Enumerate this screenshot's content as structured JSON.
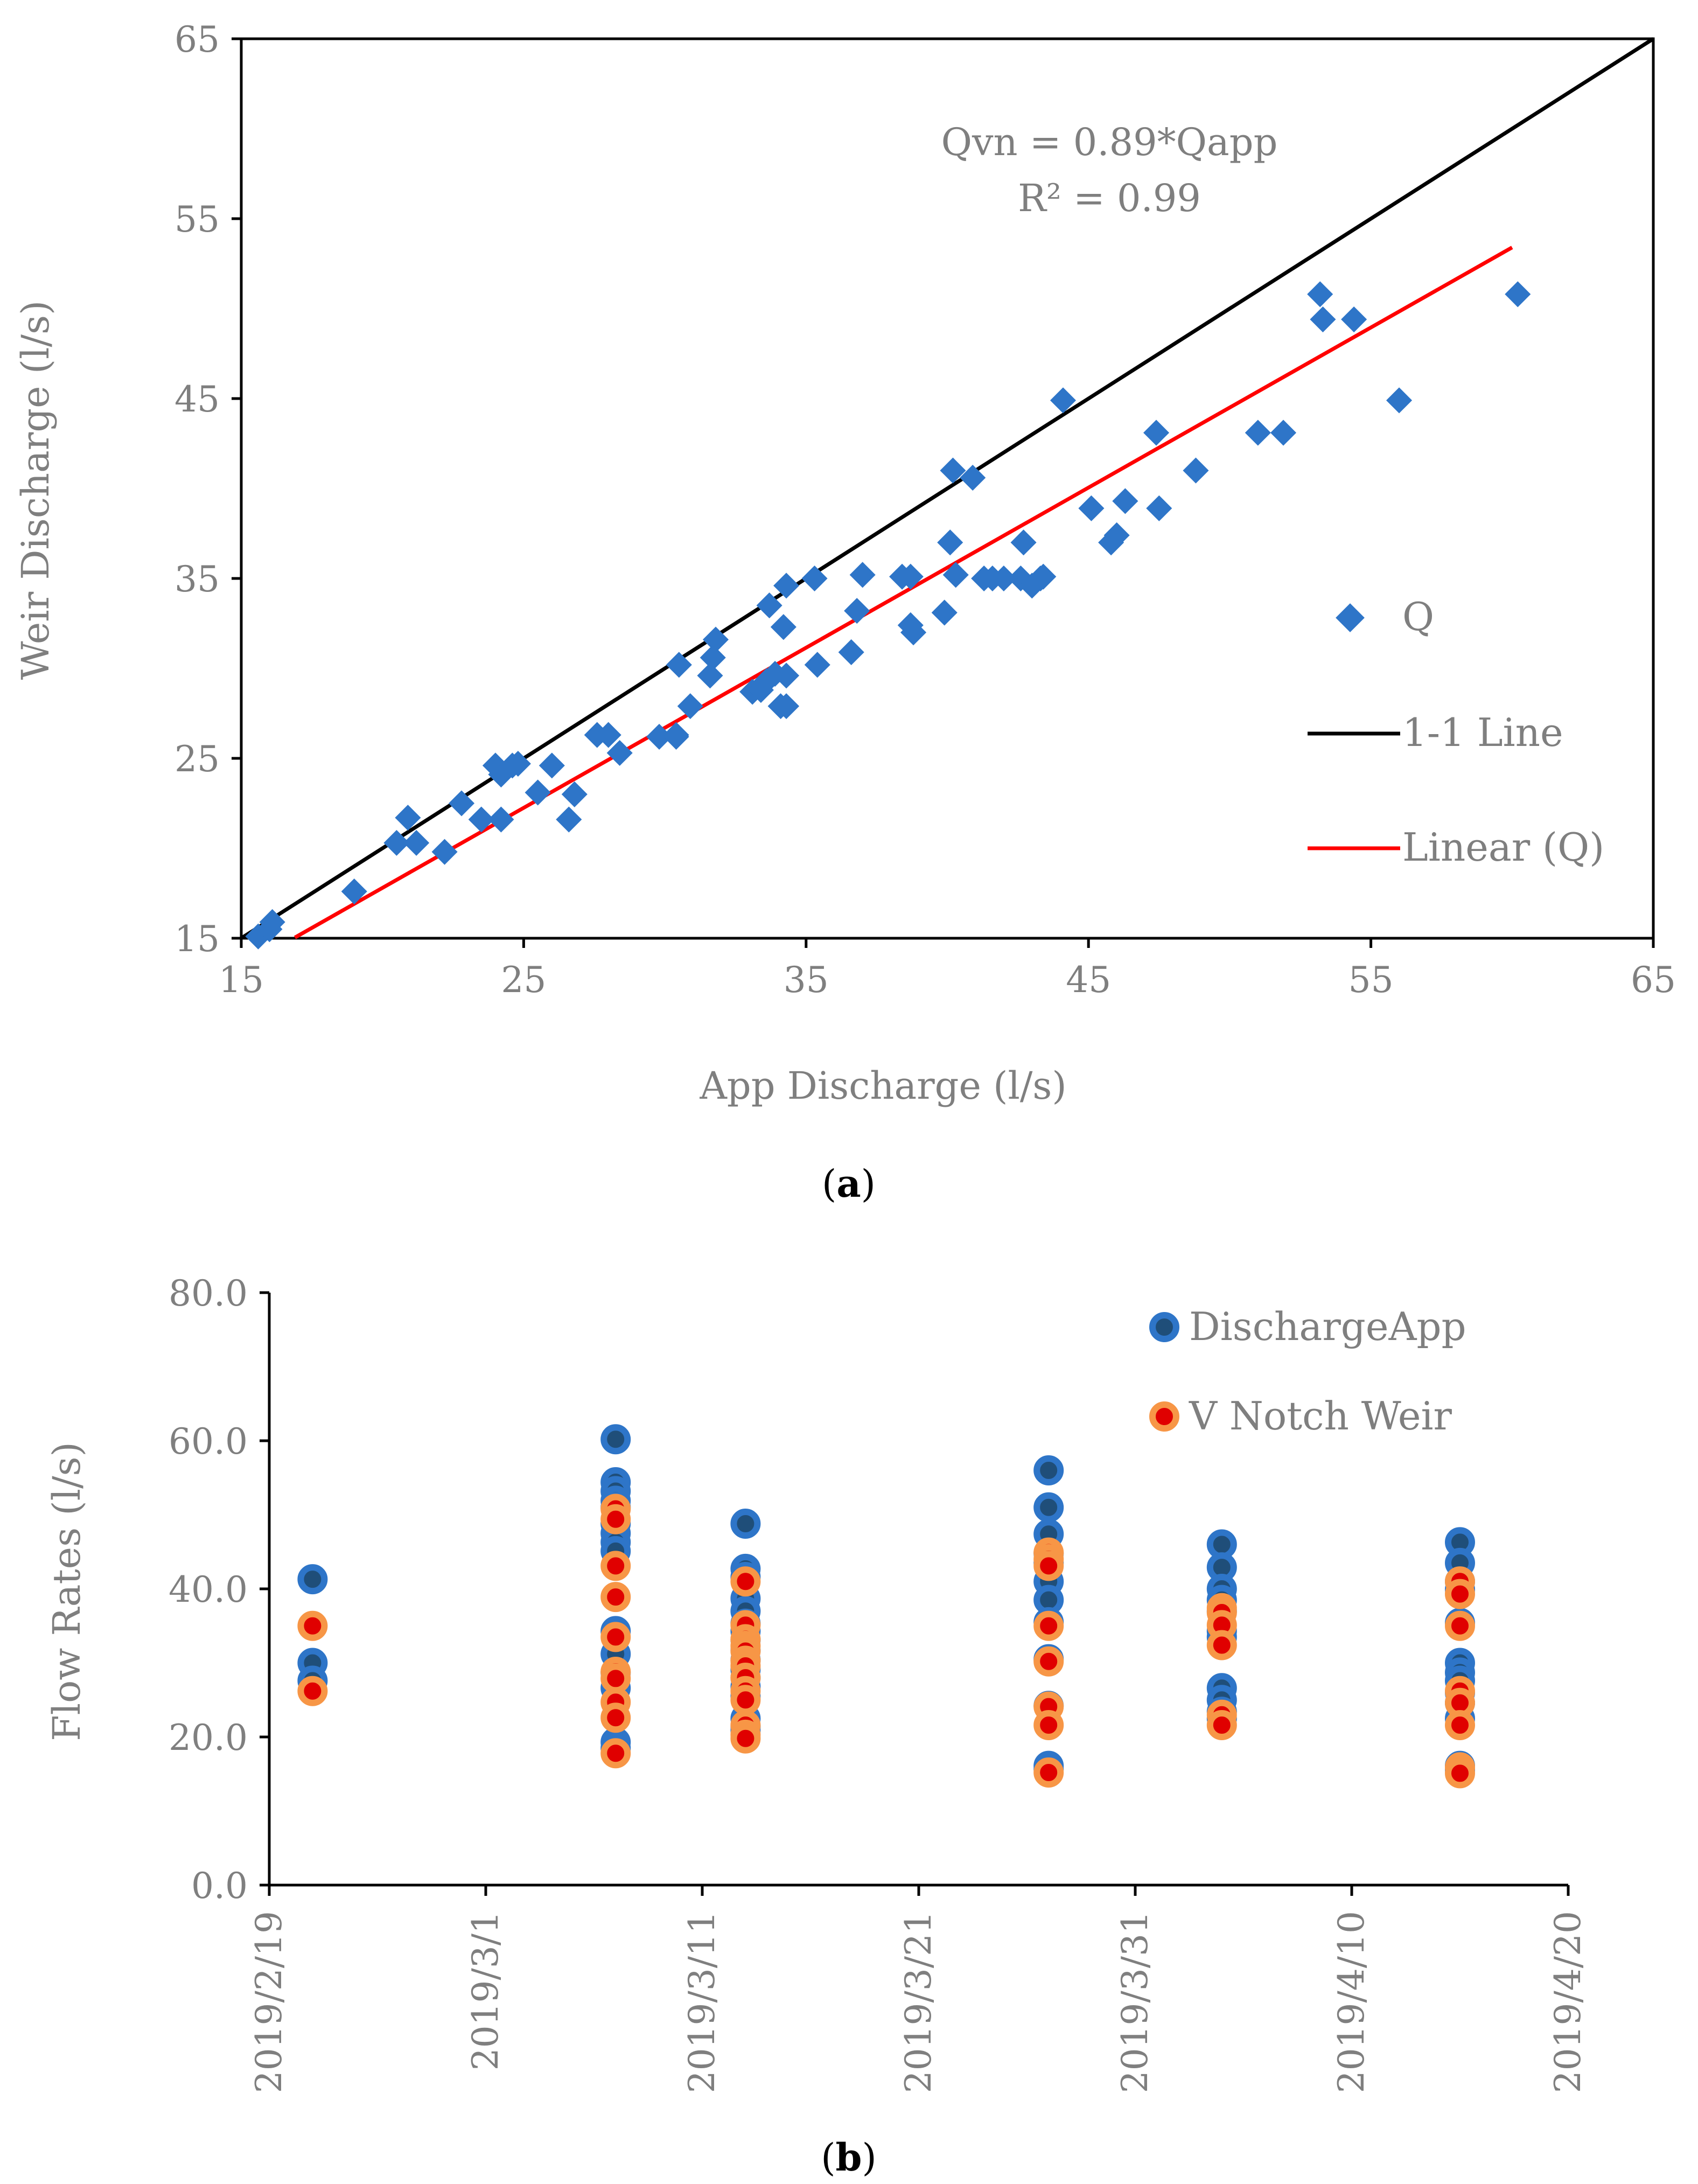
{
  "chart_data": [
    {
      "type": "scatter",
      "panel_label": "a",
      "xlabel": "App Discharge (l/s)",
      "ylabel": "Weir Discharge (l/s)",
      "xlim": [
        15,
        65
      ],
      "ylim": [
        15,
        65
      ],
      "xticks": [
        "15",
        "25",
        "35",
        "45",
        "55",
        "65"
      ],
      "yticks": [
        "15",
        "25",
        "35",
        "45",
        "55",
        "65"
      ],
      "equation": "Qvn = 0.89*Qapp",
      "r_squared": "R² = 0.99",
      "legend": [
        "Q",
        "1-1 Line",
        "Linear (Q)"
      ],
      "grid": false,
      "series": [
        {
          "name": "Q",
          "marker": "diamond",
          "color": "#2E75C8",
          "x": [
            15.6,
            16.0,
            16.1,
            19.0,
            20.5,
            20.9,
            21.2,
            22.2,
            22.8,
            23.5,
            24.0,
            24.2,
            24.2,
            24.6,
            24.8,
            25.5,
            26.0,
            26.6,
            26.8,
            27.6,
            28.0,
            28.4,
            29.8,
            30.4,
            30.4,
            30.5,
            30.9,
            31.6,
            31.7,
            31.8,
            33.1,
            33.4,
            33.6,
            33.7,
            33.9,
            34.1,
            34.2,
            34.3,
            34.3,
            34.3,
            35.3,
            35.4,
            36.6,
            36.8,
            37.0,
            38.4,
            38.7,
            38.7,
            38.8,
            39.9,
            40.1,
            40.2,
            40.3,
            40.9,
            41.3,
            41.6,
            42.0,
            42.6,
            42.7,
            43.0,
            43.3,
            43.4,
            44.1,
            45.1,
            45.8,
            46.0,
            46.3,
            47.4,
            47.5,
            48.8,
            51.0,
            51.9,
            53.2,
            53.3,
            54.4,
            56.0,
            60.2
          ],
          "y": [
            15.1,
            15.5,
            15.9,
            17.6,
            20.3,
            21.7,
            20.3,
            19.8,
            22.5,
            21.6,
            24.6,
            21.6,
            24.1,
            24.6,
            24.7,
            23.1,
            24.6,
            21.6,
            23.0,
            26.3,
            26.3,
            25.3,
            26.2,
            26.3,
            26.2,
            30.2,
            27.9,
            29.6,
            30.6,
            31.6,
            28.7,
            28.8,
            29.3,
            33.5,
            29.7,
            27.9,
            32.3,
            34.6,
            29.6,
            27.9,
            35.0,
            30.2,
            30.9,
            33.2,
            35.2,
            35.1,
            35.1,
            32.4,
            32.0,
            33.1,
            37.0,
            41.0,
            35.2,
            40.6,
            35.0,
            35.0,
            35.0,
            35.0,
            37.0,
            34.6,
            35.0,
            35.1,
            44.9,
            38.9,
            37.0,
            37.4,
            39.3,
            43.1,
            38.9,
            41.0,
            43.1,
            43.1,
            50.8,
            49.4,
            49.4,
            44.9,
            50.8
          ]
        },
        {
          "name": "1-1 Line",
          "color": "#000000",
          "x": [
            15,
            65
          ],
          "y": [
            15,
            65
          ]
        },
        {
          "name": "Linear (Q)",
          "color": "#FF0000",
          "slope": 0.89,
          "x": [
            16.9,
            60.0
          ],
          "y": [
            15.04,
            53.4
          ]
        }
      ]
    },
    {
      "type": "scatter",
      "panel_label": "b",
      "ylabel": "Flow Rates (l/s)",
      "ylim": [
        0.0,
        80.0
      ],
      "yticks": [
        "0.0",
        "20.0",
        "40.0",
        "60.0",
        "80.0"
      ],
      "xlim_days": [
        0,
        60
      ],
      "xticks": [
        "2019/2/19",
        "2019/3/1",
        "2019/3/11",
        "2019/3/21",
        "2019/3/31",
        "2019/4/10",
        "2019/4/20"
      ],
      "legend": [
        "DischargeApp",
        "V Notch Weir"
      ],
      "grid": false,
      "series": [
        {
          "name": "DischargeApp",
          "color": "#2E75C8",
          "points": [
            {
              "day": 2,
              "values": [
                41.3,
                30.0,
                27.6
              ]
            },
            {
              "day": 16,
              "values": [
                60.2,
                54.4,
                53.2,
                51.9,
                51.0,
                48.8,
                47.5,
                46.3,
                45.1,
                34.3,
                31.2,
                28.7,
                26.6,
                19.3,
                18.5
              ]
            },
            {
              "day": 22,
              "values": [
                48.8,
                42.7,
                41.6,
                38.7,
                37.0,
                35.3,
                34.3,
                33.1,
                31.7,
                30.4,
                29.1,
                28.0,
                26.8,
                25.5,
                22.5,
                21.4,
                20.9
              ]
            },
            {
              "day": 36,
              "values": [
                56.0,
                51.0,
                47.4,
                44.8,
                43.5,
                41.0,
                38.5,
                35.5,
                30.5,
                24.2,
                16.1,
                15.6
              ]
            },
            {
              "day": 44,
              "values": [
                46.0,
                42.9,
                40.0,
                38.5,
                37.0,
                34.3,
                33.5,
                26.6,
                25.0,
                23.4,
                22.5
              ]
            },
            {
              "day": 55,
              "values": [
                46.3,
                43.5,
                41.0,
                39.9,
                35.4,
                30.0,
                28.7,
                27.6,
                26.0,
                24.6,
                22.5,
                16.1,
                15.5
              ]
            }
          ]
        },
        {
          "name": "V Notch Weir",
          "color": "#FF0000",
          "points": [
            {
              "day": 2,
              "values": [
                35.0,
                26.2
              ]
            },
            {
              "day": 16,
              "values": [
                50.8,
                49.4,
                43.1,
                38.9,
                33.5,
                28.8,
                27.9,
                24.7,
                22.6,
                17.8
              ]
            },
            {
              "day": 22,
              "values": [
                41.0,
                35.1,
                33.2,
                32.3,
                31.6,
                30.3,
                29.6,
                28.0,
                26.2,
                25.0,
                21.6,
                20.3,
                19.8
              ]
            },
            {
              "day": 36,
              "values": [
                44.9,
                44.0,
                43.1,
                35.0,
                30.2,
                24.1,
                21.6,
                15.2
              ]
            },
            {
              "day": 44,
              "values": [
                37.4,
                36.8,
                35.1,
                32.4,
                23.0,
                21.6
              ]
            },
            {
              "day": 55,
              "values": [
                41.0,
                39.3,
                35.0,
                26.2,
                24.6,
                21.6,
                15.9,
                15.1
              ]
            }
          ]
        }
      ]
    }
  ],
  "captions": {
    "a": "(a)",
    "b": "(b)"
  }
}
